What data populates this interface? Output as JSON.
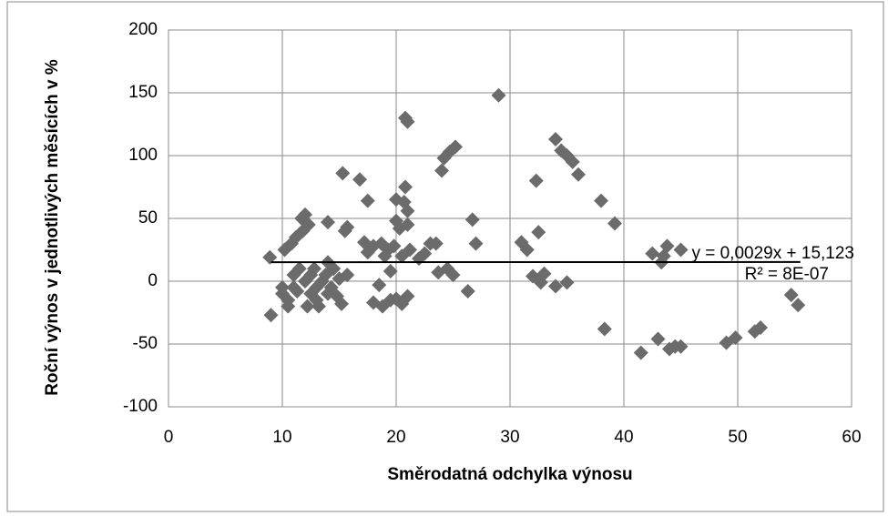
{
  "chart_data": {
    "type": "scatter",
    "xlabel": "Směrodatná odchylka výnosu",
    "ylabel": "Roční výnos v jednotlivých měsících v %",
    "xlim": [
      0,
      60
    ],
    "xticks": [
      0,
      10,
      20,
      30,
      40,
      50,
      60
    ],
    "ylim": [
      -100,
      200
    ],
    "yticks": [
      -100,
      -50,
      0,
      50,
      100,
      150,
      200
    ],
    "grid": true,
    "series": [
      {
        "color": "#6b6b6b",
        "x": [
          8.9,
          9,
          10,
          10,
          10.2,
          10.5,
          10.5,
          10.8,
          11,
          11,
          11.2,
          11.3,
          11.5,
          11.7,
          11.8,
          12,
          12,
          12.2,
          12.3,
          12.5,
          12.5,
          12.8,
          13,
          13,
          13.2,
          13.5,
          13.8,
          14,
          14,
          14,
          14.3,
          14.5,
          14.8,
          15,
          15.2,
          15.3,
          15.5,
          15.7,
          15.7,
          16.8,
          17.2,
          17.5,
          17.5,
          18,
          18,
          18.5,
          18.7,
          18.8,
          19,
          19.3,
          19.5,
          19.5,
          19.8,
          20,
          20,
          20,
          20.3,
          20.5,
          20.5,
          20.7,
          20.8,
          21,
          20.8,
          21,
          21,
          21,
          21.2,
          22,
          22.5,
          23,
          23.5,
          23.7,
          24,
          24.2,
          24.5,
          24.7,
          25,
          25.2,
          26.3,
          26.7,
          27,
          29,
          31,
          31.5,
          32,
          32.3,
          32.5,
          32.7,
          33,
          34,
          34,
          34.5,
          35,
          35,
          35.5,
          36,
          38,
          38.3,
          39.2,
          41.5,
          42.5,
          43,
          43.3,
          43.5,
          43.8,
          44,
          44.5,
          45,
          45,
          49,
          49.8,
          51.5,
          52,
          54.7,
          55.3
        ],
        "values": [
          19,
          -27,
          -10,
          -5,
          25,
          -20,
          -15,
          30,
          -5,
          5,
          35,
          -8,
          10,
          50,
          40,
          53,
          0,
          -20,
          45,
          5,
          -10,
          10,
          -5,
          -15,
          -20,
          0,
          5,
          47,
          -10,
          15,
          -5,
          10,
          -12,
          2,
          -18,
          86,
          40,
          43,
          5,
          81,
          31,
          64,
          23,
          28,
          -17,
          -3,
          30,
          -20,
          20,
          25,
          -15,
          8,
          28,
          65,
          48,
          -14,
          42,
          20,
          -18,
          63,
          130,
          127,
          75,
          56,
          45,
          -12,
          25,
          18,
          22,
          30,
          30,
          7,
          88,
          98,
          10,
          103,
          5,
          107,
          -8,
          49,
          30,
          148,
          31,
          25,
          4,
          80,
          39,
          -1,
          6,
          -4,
          113,
          104,
          100,
          -1,
          95,
          85,
          64,
          -38,
          46,
          -57,
          22,
          -46,
          15,
          20,
          28,
          -54,
          -52,
          -52,
          25,
          -49,
          -45,
          -40,
          -37,
          -11,
          -19
        ]
      }
    ],
    "trendline": {
      "slope": 0.0029,
      "intercept": 15.123,
      "xrange": [
        9,
        55.5
      ],
      "color": "#000000",
      "label": "y = 0,0029x + 15,123",
      "r2_label": "R² = 8E-07"
    }
  }
}
